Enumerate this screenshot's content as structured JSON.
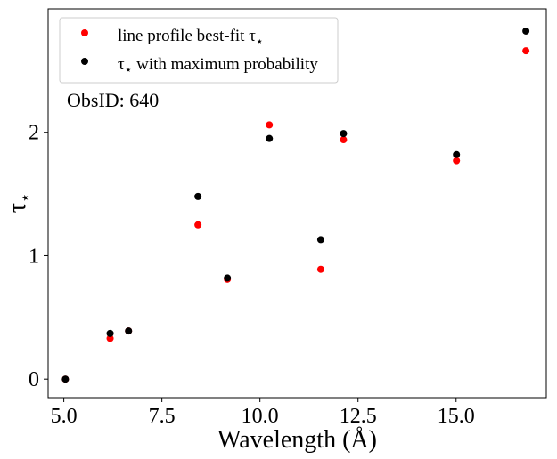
{
  "chart_data": {
    "type": "scatter",
    "title": "",
    "xlabel": "Wavelength (Å)",
    "ylabel": "τ",
    "ylabel_sub": "⋆",
    "xlim": [
      4.6,
      17.3
    ],
    "ylim": [
      -0.15,
      3.0
    ],
    "xticks": [
      5.0,
      7.5,
      10.0,
      12.5,
      15.0
    ],
    "xtick_labels": [
      "5.0",
      "7.5",
      "10.0",
      "12.5",
      "15.0"
    ],
    "yticks": [
      0,
      1,
      2
    ],
    "ytick_labels": [
      "0",
      "1",
      "2"
    ],
    "grid": false,
    "legend_position": "top-left",
    "annotation": "ObsID: 640",
    "series": [
      {
        "name": "line profile best-fit τ",
        "name_sub": "⋆",
        "color": "#ff0000",
        "points": [
          [
            5.04,
            0.0
          ],
          [
            6.18,
            0.33
          ],
          [
            6.65,
            0.39
          ],
          [
            8.42,
            1.25
          ],
          [
            9.17,
            0.81
          ],
          [
            10.24,
            2.06
          ],
          [
            11.55,
            0.89
          ],
          [
            12.13,
            1.94
          ],
          [
            15.01,
            1.77
          ],
          [
            16.78,
            2.66
          ]
        ]
      },
      {
        "name": "τ",
        "name_sub": "⋆",
        "name_suffix": " with maximum probability",
        "color": "#000000",
        "points": [
          [
            5.04,
            0.0
          ],
          [
            6.18,
            0.37
          ],
          [
            6.65,
            0.39
          ],
          [
            8.42,
            1.48
          ],
          [
            9.17,
            0.82
          ],
          [
            10.24,
            1.95
          ],
          [
            11.55,
            1.13
          ],
          [
            12.13,
            1.99
          ],
          [
            15.01,
            1.82
          ],
          [
            16.78,
            2.82
          ]
        ]
      }
    ]
  }
}
